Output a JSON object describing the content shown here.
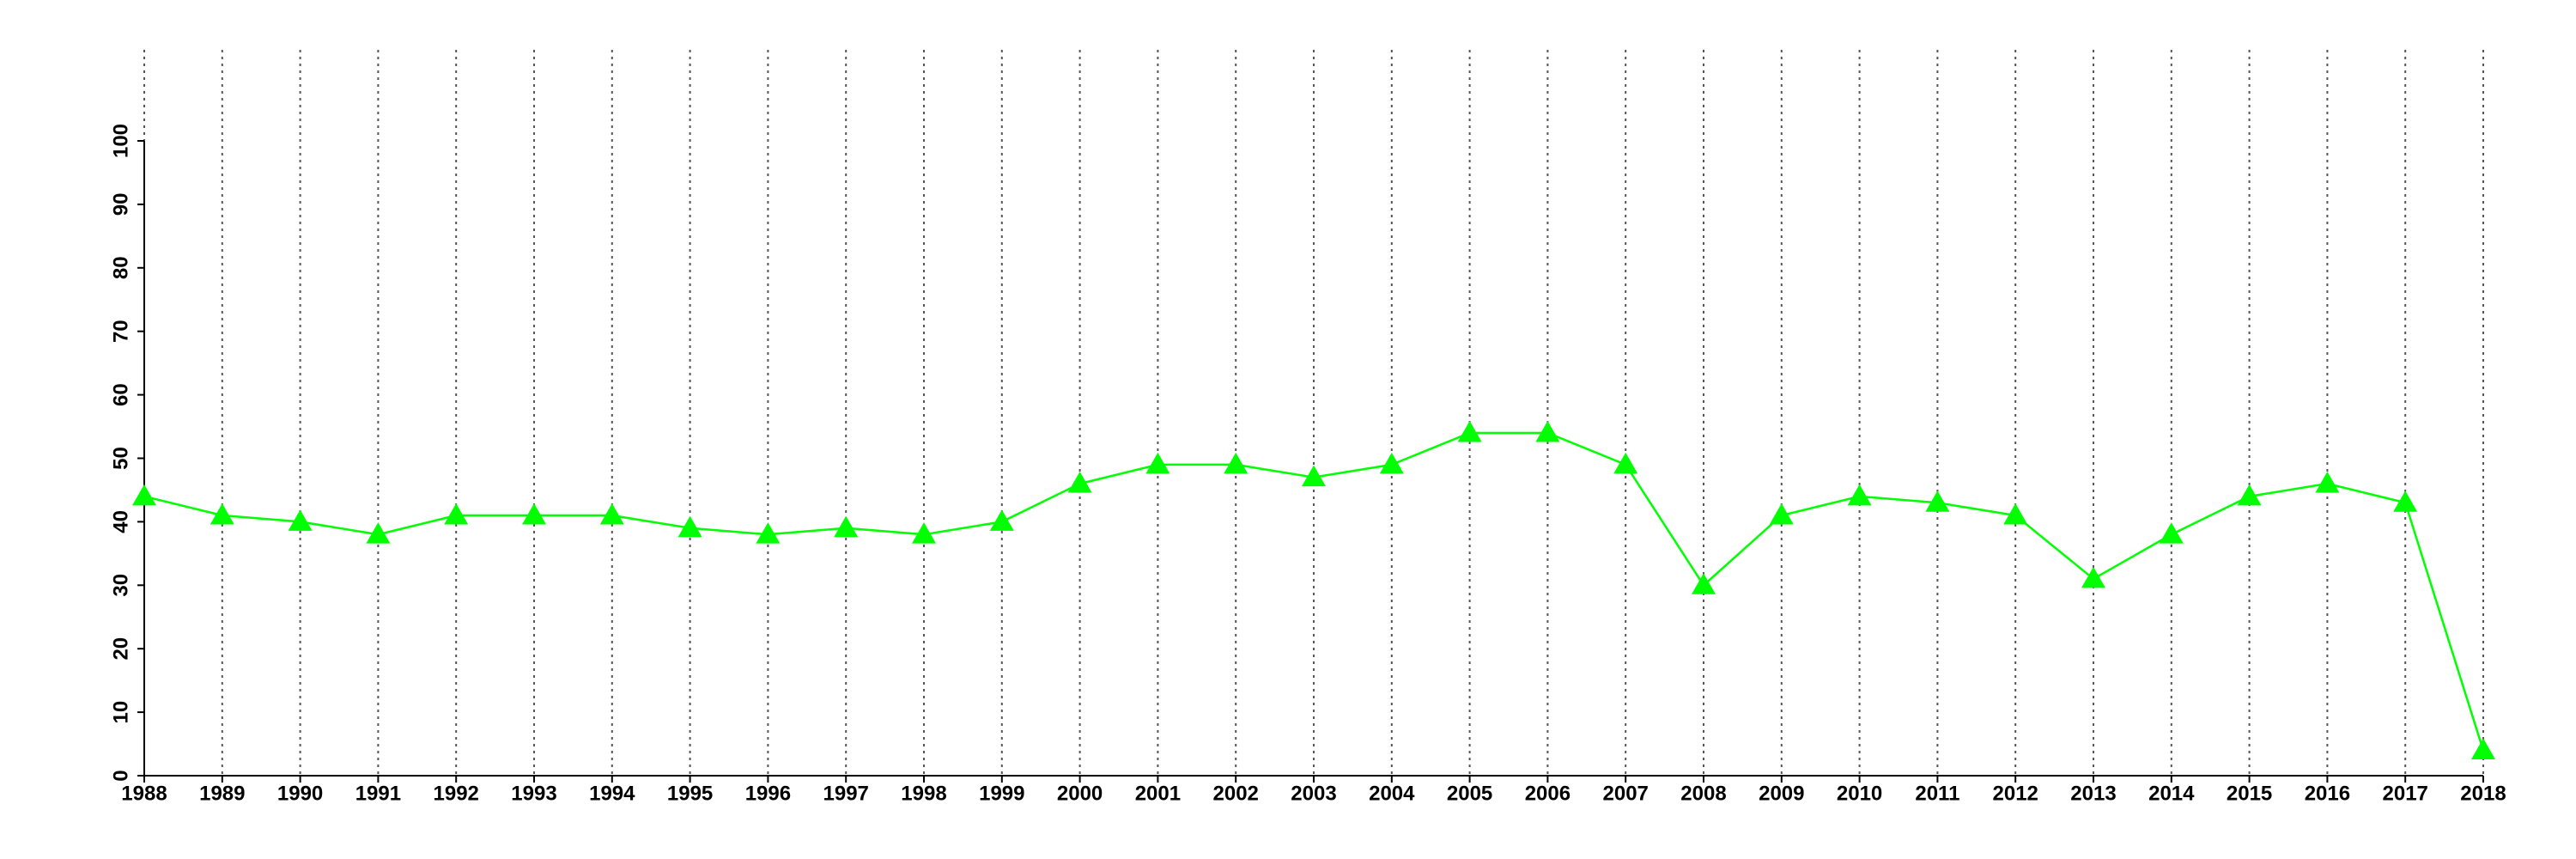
{
  "chart_data": {
    "type": "line",
    "x": [
      1988,
      1989,
      1990,
      1991,
      1992,
      1993,
      1994,
      1995,
      1996,
      1997,
      1998,
      1999,
      2000,
      2001,
      2002,
      2003,
      2004,
      2005,
      2006,
      2007,
      2008,
      2009,
      2010,
      2011,
      2012,
      2013,
      2014,
      2015,
      2016,
      2017,
      2018
    ],
    "series": [
      {
        "color": "#00ff00",
        "marker": "triangle",
        "values": [
          44,
          41,
          40,
          38,
          41,
          41,
          41,
          39,
          38,
          39,
          38,
          40,
          46,
          49,
          49,
          47,
          49,
          54,
          54,
          49,
          30,
          41,
          44,
          43,
          41,
          31,
          38,
          44,
          46,
          43,
          4
        ]
      }
    ],
    "xlim": [
      1988,
      2018
    ],
    "xticks": [
      1988,
      1989,
      1990,
      1991,
      1992,
      1993,
      1994,
      1995,
      1996,
      1997,
      1998,
      1999,
      2000,
      2001,
      2002,
      2003,
      2004,
      2005,
      2006,
      2007,
      2008,
      2009,
      2010,
      2011,
      2012,
      2013,
      2014,
      2015,
      2016,
      2017,
      2018
    ],
    "ylim": [
      0,
      100
    ],
    "yticks": [
      0,
      10,
      20,
      30,
      40,
      50,
      60,
      70,
      80,
      90,
      100
    ],
    "grid": "x"
  }
}
